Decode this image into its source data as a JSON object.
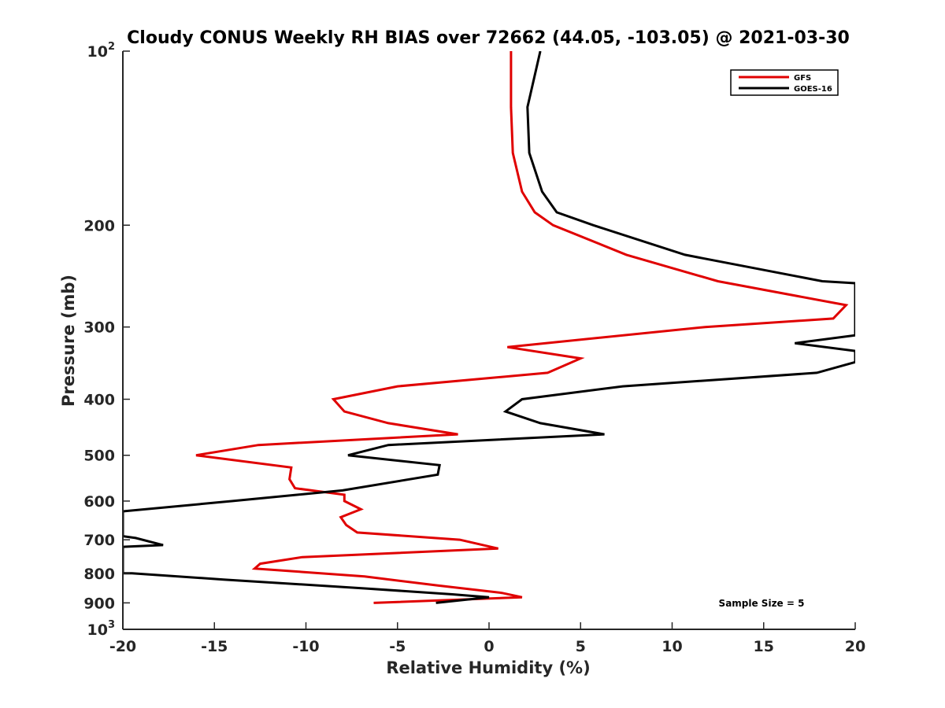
{
  "chart_data": {
    "type": "line",
    "title": "Cloudy CONUS Weekly RH BIAS over 72662 (44.05, -103.05) @ 2021-03-30",
    "xlabel": "Relative Humidity (%)",
    "ylabel": "Pressure (mb)",
    "xlim": [
      -20,
      20
    ],
    "ylim": [
      100,
      1000
    ],
    "y_scale": "log",
    "y_reversed": true,
    "grid": false,
    "legend_position": "top-right",
    "annotation": "Sample Size = 5",
    "x_ticks": [
      -20,
      -15,
      -10,
      -5,
      0,
      5,
      10,
      15,
      20
    ],
    "x_tick_labels": [
      "-20",
      "-15",
      "-10",
      "-5",
      "0",
      "5",
      "10",
      "15",
      "20"
    ],
    "y_ticks": [
      {
        "value": 100,
        "base": "10",
        "exp": "2"
      },
      {
        "value": 200,
        "label": "200"
      },
      {
        "value": 300,
        "label": "300"
      },
      {
        "value": 400,
        "label": "400"
      },
      {
        "value": 500,
        "label": "500"
      },
      {
        "value": 600,
        "label": "600"
      },
      {
        "value": 700,
        "label": "700"
      },
      {
        "value": 800,
        "label": "800"
      },
      {
        "value": 900,
        "label": "900"
      },
      {
        "value": 1000,
        "base": "10",
        "exp": "3"
      }
    ],
    "series": [
      {
        "name": "GFS",
        "color": "#e00000",
        "points": [
          [
            1.2,
            100
          ],
          [
            1.2,
            125
          ],
          [
            1.3,
            150
          ],
          [
            1.8,
            175
          ],
          [
            2.5,
            190
          ],
          [
            3.5,
            200
          ],
          [
            7.5,
            225
          ],
          [
            12.5,
            250
          ],
          [
            19.5,
            275
          ],
          [
            18.8,
            290
          ],
          [
            11.8,
            300
          ],
          [
            1.0,
            325
          ],
          [
            5.0,
            340
          ],
          [
            3.2,
            360
          ],
          [
            -5.0,
            380
          ],
          [
            -8.5,
            400
          ],
          [
            -7.9,
            420
          ],
          [
            -5.5,
            440
          ],
          [
            -1.7,
            460
          ],
          [
            -12.6,
            480
          ],
          [
            -16.0,
            500
          ],
          [
            -10.8,
            525
          ],
          [
            -10.9,
            550
          ],
          [
            -10.6,
            570
          ],
          [
            -7.9,
            585
          ],
          [
            -7.9,
            600
          ],
          [
            -7.0,
            620
          ],
          [
            -8.1,
            640
          ],
          [
            -7.8,
            660
          ],
          [
            -7.2,
            680
          ],
          [
            -1.6,
            700
          ],
          [
            0.5,
            725
          ],
          [
            -10.2,
            750
          ],
          [
            -12.5,
            770
          ],
          [
            -12.8,
            785
          ],
          [
            -6.8,
            810
          ],
          [
            -2.8,
            840
          ],
          [
            0.7,
            865
          ],
          [
            1.8,
            880
          ],
          [
            -6.3,
            900
          ]
        ]
      },
      {
        "name": "GOES-16",
        "color": "#000000",
        "points": [
          [
            2.8,
            100
          ],
          [
            2.1,
            125
          ],
          [
            2.2,
            150
          ],
          [
            2.9,
            175
          ],
          [
            3.7,
            190
          ],
          [
            5.7,
            200
          ],
          [
            10.7,
            225
          ],
          [
            18.2,
            250
          ],
          [
            20.0,
            252
          ],
          [
            20.0,
            310
          ],
          [
            16.7,
            320
          ],
          [
            20.0,
            330
          ],
          [
            20.0,
            345
          ],
          [
            17.9,
            360
          ],
          [
            7.3,
            380
          ],
          [
            1.8,
            400
          ],
          [
            0.9,
            420
          ],
          [
            2.8,
            440
          ],
          [
            6.3,
            460
          ],
          [
            -5.5,
            480
          ],
          [
            -7.7,
            500
          ],
          [
            -2.7,
            520
          ],
          [
            -2.8,
            540
          ],
          [
            -8.0,
            575
          ],
          [
            -14.0,
            600
          ],
          [
            -20.0,
            625
          ],
          [
            -20.0,
            690
          ],
          [
            -19.3,
            695
          ],
          [
            -17.8,
            715
          ],
          [
            -20.0,
            720
          ],
          [
            -20.0,
            800
          ],
          [
            -19.5,
            800
          ],
          [
            -14.5,
            820
          ],
          [
            -6.7,
            850
          ],
          [
            -2.0,
            870
          ],
          [
            0.0,
            880
          ],
          [
            -2.9,
            900
          ]
        ]
      }
    ]
  }
}
